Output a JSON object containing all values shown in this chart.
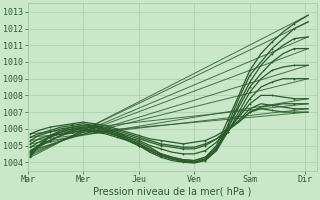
{
  "bg_color": "#c8e8c8",
  "grid_color": "#a0c8a0",
  "line_color": "#2d5a2d",
  "ylim": [
    1003.5,
    1013.5
  ],
  "yticks": [
    1004,
    1005,
    1006,
    1007,
    1008,
    1009,
    1010,
    1011,
    1012,
    1013
  ],
  "xtick_labels": [
    "Mar",
    "Mer",
    "Jeu",
    "Ven",
    "Sam",
    "Dir"
  ],
  "xtick_positions": [
    0.0,
    1.0,
    2.0,
    3.0,
    4.0,
    5.0
  ],
  "xlabel": "Pression niveau de la mer( hPa )",
  "straight_lines": [
    {
      "x0": 0.05,
      "y0": 1004.3,
      "x1": 5.05,
      "y1": 1012.8
    },
    {
      "x0": 0.05,
      "y0": 1004.4,
      "x1": 5.05,
      "y1": 1012.4
    },
    {
      "x0": 0.05,
      "y0": 1004.5,
      "x1": 5.05,
      "y1": 1011.5
    },
    {
      "x0": 0.05,
      "y0": 1004.6,
      "x1": 5.05,
      "y1": 1010.8
    },
    {
      "x0": 0.05,
      "y0": 1004.7,
      "x1": 5.05,
      "y1": 1009.8
    },
    {
      "x0": 0.05,
      "y0": 1004.9,
      "x1": 5.05,
      "y1": 1009.0
    },
    {
      "x0": 0.05,
      "y0": 1005.1,
      "x1": 5.05,
      "y1": 1007.8
    },
    {
      "x0": 0.05,
      "y0": 1005.3,
      "x1": 5.05,
      "y1": 1007.2
    },
    {
      "x0": 0.05,
      "y0": 1005.5,
      "x1": 5.05,
      "y1": 1007.0
    },
    {
      "x0": 0.05,
      "y0": 1005.7,
      "x1": 5.05,
      "y1": 1007.5
    }
  ],
  "wavy_lines": [
    {
      "x": [
        0.05,
        0.2,
        0.4,
        0.6,
        0.8,
        1.0,
        1.2,
        1.4,
        1.6,
        1.8,
        2.0,
        2.2,
        2.4,
        2.6,
        2.8,
        3.0,
        3.2,
        3.4,
        3.6,
        3.8,
        4.0,
        4.2,
        4.4,
        4.6,
        4.8,
        5.05
      ],
      "y": [
        1004.3,
        1005.0,
        1005.6,
        1005.9,
        1006.1,
        1006.2,
        1006.2,
        1006.0,
        1005.8,
        1005.5,
        1005.2,
        1004.9,
        1004.5,
        1004.3,
        1004.15,
        1004.1,
        1004.3,
        1005.0,
        1006.5,
        1008.0,
        1009.5,
        1010.5,
        1011.2,
        1011.8,
        1012.3,
        1012.8
      ]
    },
    {
      "x": [
        0.05,
        0.2,
        0.4,
        0.6,
        0.8,
        1.0,
        1.2,
        1.4,
        1.6,
        1.8,
        2.0,
        2.2,
        2.4,
        2.6,
        2.8,
        3.0,
        3.2,
        3.4,
        3.6,
        3.8,
        4.0,
        4.2,
        4.4,
        4.6,
        4.8,
        5.05
      ],
      "y": [
        1004.4,
        1005.0,
        1005.5,
        1005.8,
        1006.0,
        1006.1,
        1006.1,
        1005.9,
        1005.7,
        1005.4,
        1005.1,
        1004.7,
        1004.4,
        1004.2,
        1004.1,
        1004.0,
        1004.2,
        1004.8,
        1006.2,
        1007.8,
        1009.2,
        1010.0,
        1010.8,
        1011.4,
        1012.0,
        1012.4
      ]
    },
    {
      "x": [
        0.05,
        0.2,
        0.4,
        0.6,
        0.8,
        1.0,
        1.2,
        1.4,
        1.6,
        1.8,
        2.0,
        2.2,
        2.4,
        2.6,
        2.8,
        3.0,
        3.2,
        3.4,
        3.6,
        3.8,
        4.0,
        4.2,
        4.4,
        4.6,
        4.8,
        5.05
      ],
      "y": [
        1004.5,
        1004.9,
        1005.3,
        1005.6,
        1005.9,
        1006.0,
        1005.9,
        1005.8,
        1005.6,
        1005.3,
        1005.0,
        1004.6,
        1004.3,
        1004.1,
        1004.0,
        1003.95,
        1004.1,
        1004.7,
        1006.0,
        1007.5,
        1008.8,
        1009.8,
        1010.5,
        1011.0,
        1011.4,
        1011.5
      ]
    },
    {
      "x": [
        0.05,
        0.2,
        0.4,
        0.6,
        0.8,
        1.0,
        1.2,
        1.4,
        1.6,
        1.8,
        2.0,
        2.2,
        2.4,
        2.6,
        2.8,
        3.0,
        3.2,
        3.4,
        3.6,
        3.8,
        4.0,
        4.2,
        4.4,
        4.6,
        4.8,
        5.05
      ],
      "y": [
        1004.6,
        1005.0,
        1005.3,
        1005.6,
        1005.8,
        1005.9,
        1005.9,
        1005.8,
        1005.6,
        1005.3,
        1005.0,
        1004.7,
        1004.4,
        1004.2,
        1004.05,
        1004.0,
        1004.2,
        1004.8,
        1006.0,
        1007.3,
        1008.5,
        1009.3,
        1010.0,
        1010.5,
        1010.8,
        1010.8
      ]
    },
    {
      "x": [
        0.05,
        0.2,
        0.4,
        0.6,
        0.8,
        1.0,
        1.2,
        1.4,
        1.6,
        1.8,
        2.0,
        2.2,
        2.4,
        2.6,
        2.8,
        3.0,
        3.2,
        3.4,
        3.6,
        3.8,
        4.0,
        4.2,
        4.4,
        4.6,
        4.8,
        5.05
      ],
      "y": [
        1004.7,
        1005.0,
        1005.3,
        1005.6,
        1005.8,
        1005.9,
        1005.8,
        1005.7,
        1005.5,
        1005.3,
        1005.0,
        1004.7,
        1004.4,
        1004.2,
        1004.05,
        1004.0,
        1004.15,
        1004.7,
        1005.8,
        1007.0,
        1008.2,
        1009.0,
        1009.5,
        1009.7,
        1009.8,
        1009.8
      ]
    },
    {
      "x": [
        0.05,
        0.2,
        0.4,
        0.6,
        0.8,
        1.0,
        1.2,
        1.4,
        1.6,
        1.8,
        2.0,
        2.2,
        2.4,
        2.6,
        2.8,
        3.0,
        3.2,
        3.4,
        3.6,
        3.8,
        4.0,
        4.2,
        4.4,
        4.6,
        4.8,
        5.05
      ],
      "y": [
        1004.9,
        1005.2,
        1005.5,
        1005.7,
        1005.9,
        1006.0,
        1005.9,
        1005.8,
        1005.6,
        1005.4,
        1005.1,
        1004.8,
        1004.5,
        1004.3,
        1004.15,
        1004.1,
        1004.3,
        1004.9,
        1005.8,
        1006.8,
        1007.8,
        1008.5,
        1008.8,
        1009.0,
        1009.0,
        1009.0
      ]
    },
    {
      "x": [
        0.05,
        0.2,
        0.4,
        0.6,
        0.8,
        1.0,
        1.2,
        1.4,
        1.6,
        1.8,
        2.0,
        2.2,
        2.4,
        2.6,
        2.8,
        3.0,
        3.2,
        3.4,
        3.6,
        3.8,
        4.0,
        4.2,
        4.4,
        4.6,
        4.8,
        5.05
      ],
      "y": [
        1005.1,
        1005.4,
        1005.6,
        1005.8,
        1006.0,
        1006.1,
        1006.0,
        1005.9,
        1005.7,
        1005.5,
        1005.3,
        1005.0,
        1004.8,
        1004.6,
        1004.5,
        1004.5,
        1004.7,
        1005.2,
        1005.9,
        1006.7,
        1007.5,
        1008.0,
        1008.0,
        1007.9,
        1007.8,
        1007.8
      ]
    },
    {
      "x": [
        0.05,
        0.2,
        0.4,
        0.6,
        0.8,
        1.0,
        1.2,
        1.4,
        1.6,
        1.8,
        2.0,
        2.2,
        2.4,
        2.6,
        2.8,
        3.0,
        3.2,
        3.4,
        3.6,
        3.8,
        4.0,
        4.2,
        4.4,
        4.6,
        4.8,
        5.05
      ],
      "y": [
        1005.3,
        1005.6,
        1005.8,
        1006.0,
        1006.1,
        1006.2,
        1006.1,
        1006.0,
        1005.8,
        1005.6,
        1005.4,
        1005.2,
        1005.0,
        1004.9,
        1004.8,
        1004.8,
        1005.0,
        1005.4,
        1005.9,
        1006.5,
        1007.2,
        1007.5,
        1007.4,
        1007.3,
        1007.2,
        1007.2
      ]
    },
    {
      "x": [
        0.05,
        0.2,
        0.4,
        0.6,
        0.8,
        1.0,
        1.2,
        1.4,
        1.6,
        1.8,
        2.0,
        2.2,
        2.4,
        2.6,
        2.8,
        3.0,
        3.2,
        3.4,
        3.6,
        3.8,
        4.0,
        4.2,
        4.4,
        4.6,
        4.8,
        5.05
      ],
      "y": [
        1005.5,
        1005.7,
        1005.9,
        1006.1,
        1006.2,
        1006.3,
        1006.2,
        1006.1,
        1005.9,
        1005.7,
        1005.5,
        1005.3,
        1005.1,
        1005.0,
        1004.9,
        1004.9,
        1005.1,
        1005.4,
        1005.9,
        1006.4,
        1007.0,
        1007.2,
        1007.1,
        1007.0,
        1007.0,
        1007.0
      ]
    },
    {
      "x": [
        0.05,
        0.2,
        0.4,
        0.6,
        0.8,
        1.0,
        1.2,
        1.4,
        1.6,
        1.8,
        2.0,
        2.2,
        2.4,
        2.6,
        2.8,
        3.0,
        3.2,
        3.4,
        3.6,
        3.8,
        4.0,
        4.2,
        4.4,
        4.6,
        4.8,
        5.05
      ],
      "y": [
        1005.7,
        1005.9,
        1006.1,
        1006.2,
        1006.3,
        1006.4,
        1006.3,
        1006.2,
        1006.0,
        1005.8,
        1005.6,
        1005.4,
        1005.3,
        1005.2,
        1005.1,
        1005.2,
        1005.3,
        1005.6,
        1006.0,
        1006.4,
        1007.0,
        1007.3,
        1007.4,
        1007.5,
        1007.5,
        1007.5
      ]
    }
  ]
}
